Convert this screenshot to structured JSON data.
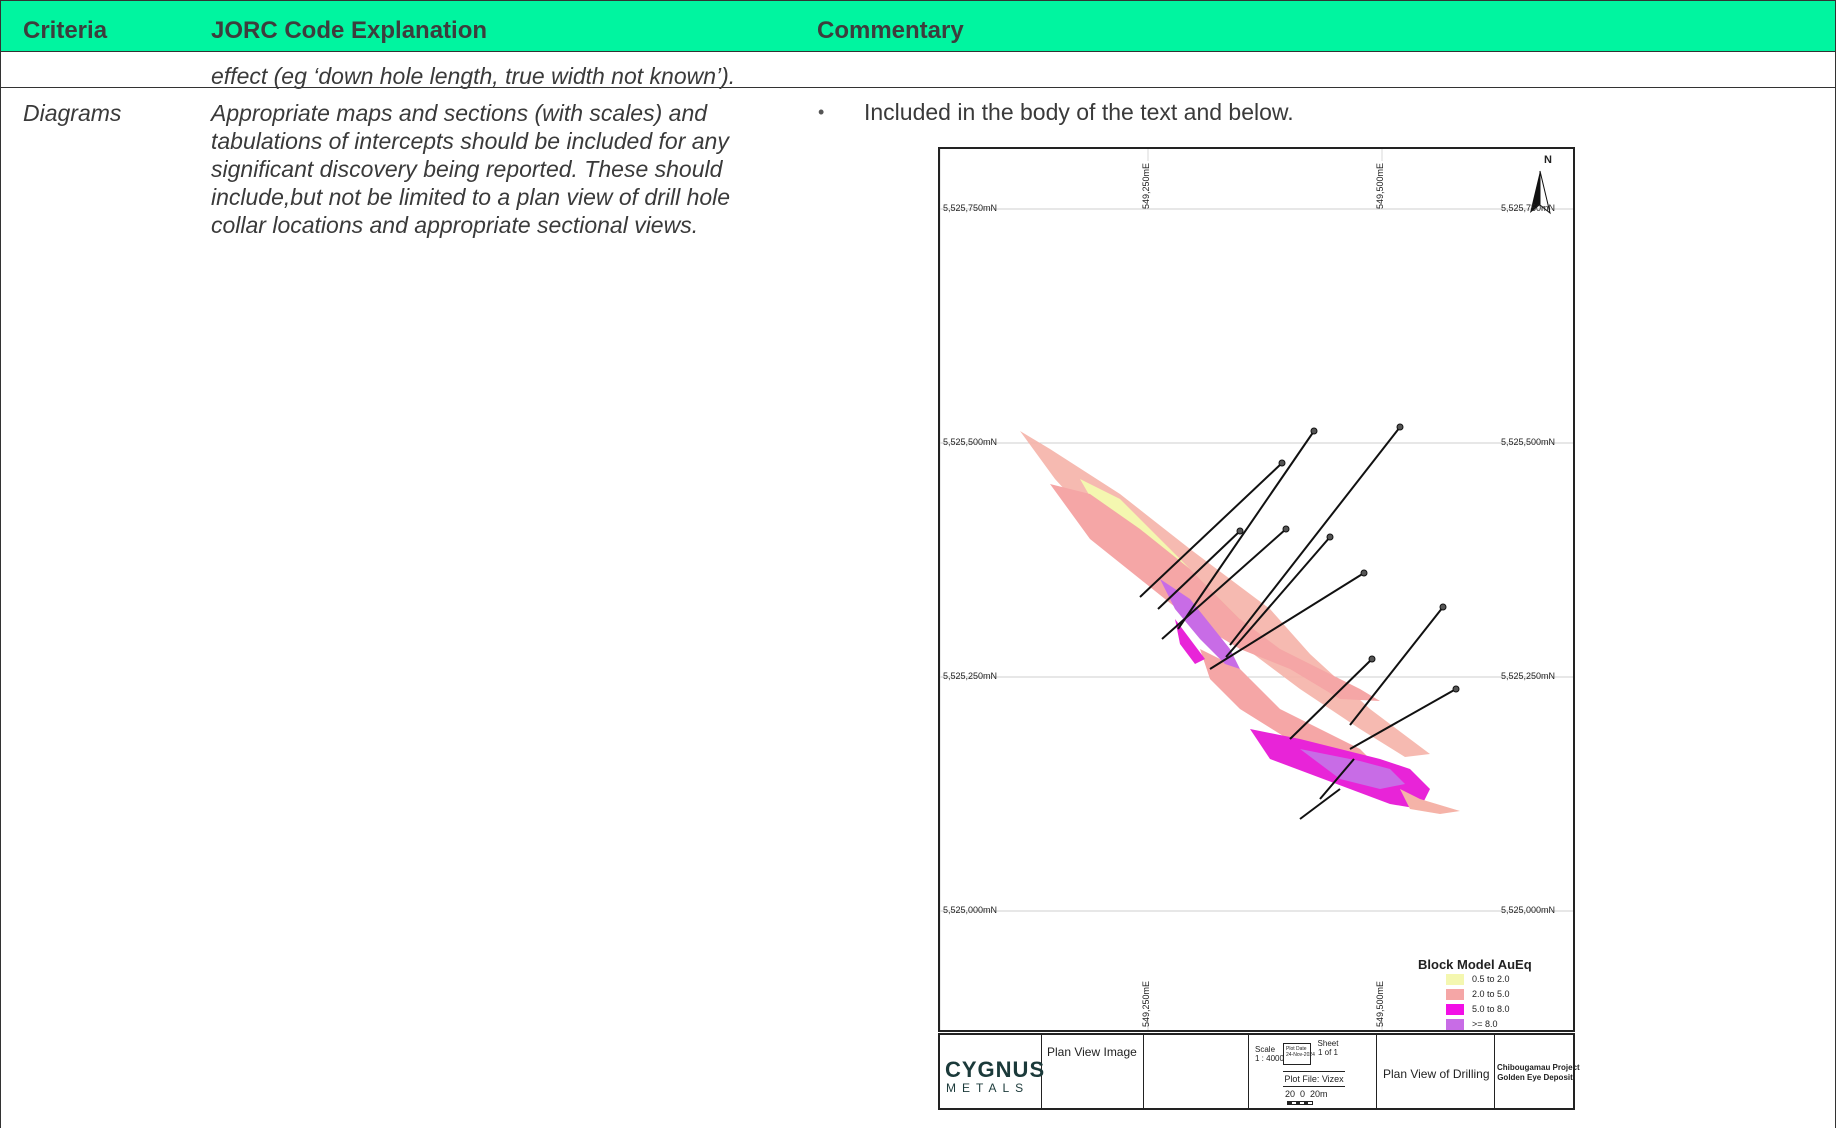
{
  "table": {
    "headers": {
      "criteria": "Criteria",
      "explanation": "JORC Code Explanation",
      "commentary": "Commentary"
    },
    "continuation_text": "effect (eg ‘down hole length, true width not known’).",
    "row": {
      "criteria": "Diagrams",
      "explanation": "Appropriate maps and sections (with scales) and tabulations of intercepts should be included for any significant discovery being reported. These should include,but not be limited to a plan view of drill hole collar locations and appropriate sectional views.",
      "commentary": "Included in the body of the text and below."
    }
  },
  "map": {
    "north_label": "N",
    "northings": [
      "5,525,750mN",
      "5,525,500mN",
      "5,525,250mN",
      "5,525,000mN"
    ],
    "eastings": [
      "549,250mE",
      "549,500mE"
    ],
    "legend": {
      "title": "Block Model AuEq",
      "items": [
        {
          "label": "0.5 to 2.0",
          "color": "#f4f7b0"
        },
        {
          "label": "2.0 to 5.0",
          "color": "#f5a6a6"
        },
        {
          "label": "5.0 to 8.0",
          "color": "#f20fe6"
        },
        {
          "label": ">= 8.0",
          "color": "#c86ce6"
        }
      ]
    },
    "title_block": {
      "logo_top": "CYGNUS",
      "logo_bottom": "METALS",
      "plan_view_image": "Plan View Image",
      "scale": "Scale\n1 : 4000",
      "plot_date": "Plot Date\n24-Nov-2024",
      "sheet": "Sheet\n1 of 1",
      "plot_file": "Plot File: Vizex",
      "scale_bar": "20  0  20m",
      "view_title": "Plan View of Drilling",
      "project": "Chibougamau Project\nGolden Eye Deposit"
    }
  }
}
